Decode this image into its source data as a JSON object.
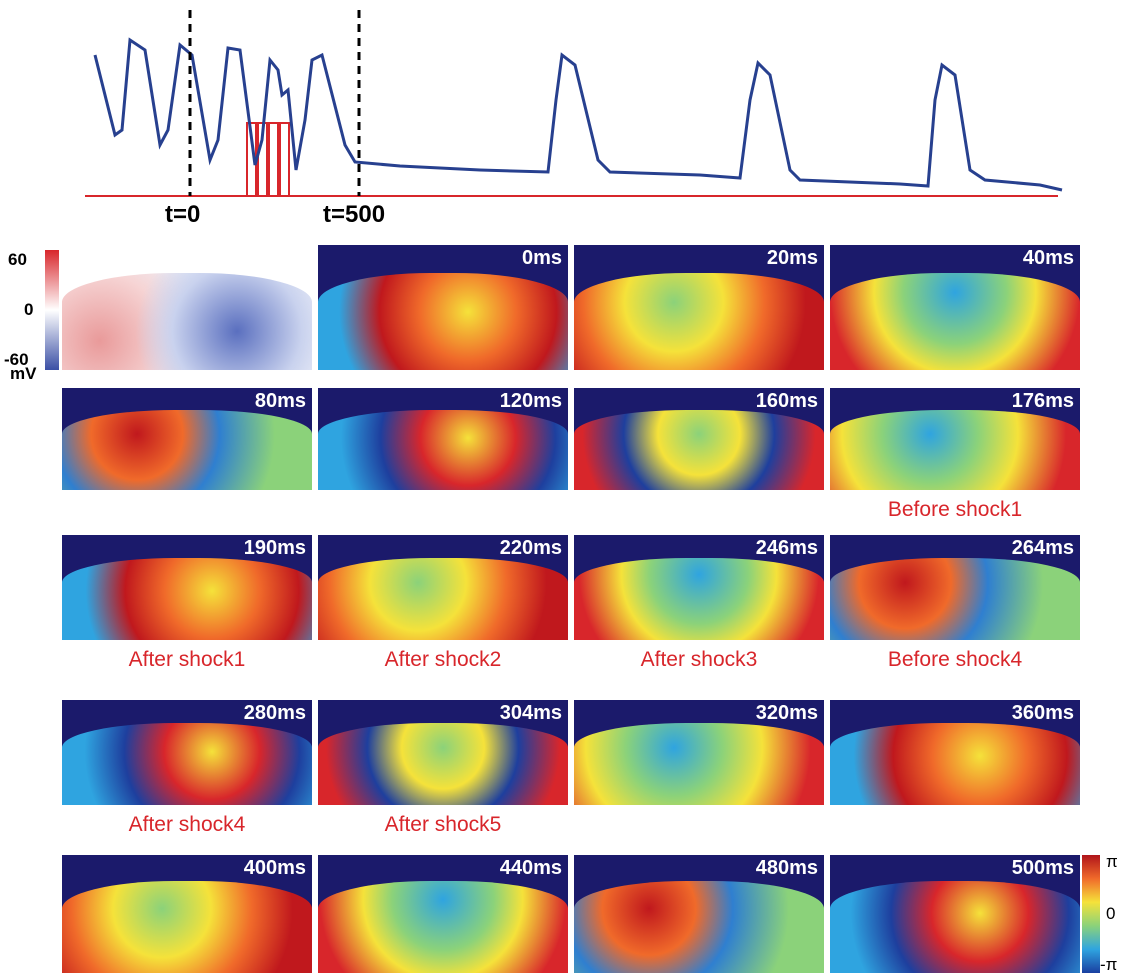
{
  "trace": {
    "markers": [
      "t=0",
      "t=500"
    ]
  },
  "voltage_colorbar": {
    "ticks": [
      "60",
      "0",
      "-60"
    ],
    "unit": "mV"
  },
  "phase_colorbar": {
    "ticks": [
      "π",
      "0",
      "-π"
    ]
  },
  "panels": [
    {
      "time": "0ms"
    },
    {
      "time": "20ms"
    },
    {
      "time": "40ms"
    },
    {
      "time": "80ms"
    },
    {
      "time": "120ms"
    },
    {
      "time": "160ms"
    },
    {
      "time": "176ms",
      "caption": "Before shock1"
    },
    {
      "time": "190ms",
      "caption": "After shock1"
    },
    {
      "time": "220ms",
      "caption": "After shock2"
    },
    {
      "time": "246ms",
      "caption": "After shock3"
    },
    {
      "time": "264ms",
      "caption": "Before shock4"
    },
    {
      "time": "280ms",
      "caption": "After shock4"
    },
    {
      "time": "304ms",
      "caption": "After shock5"
    },
    {
      "time": "320ms"
    },
    {
      "time": "360ms"
    },
    {
      "time": "400ms"
    },
    {
      "time": "440ms"
    },
    {
      "time": "480ms"
    },
    {
      "time": "500ms"
    }
  ]
}
